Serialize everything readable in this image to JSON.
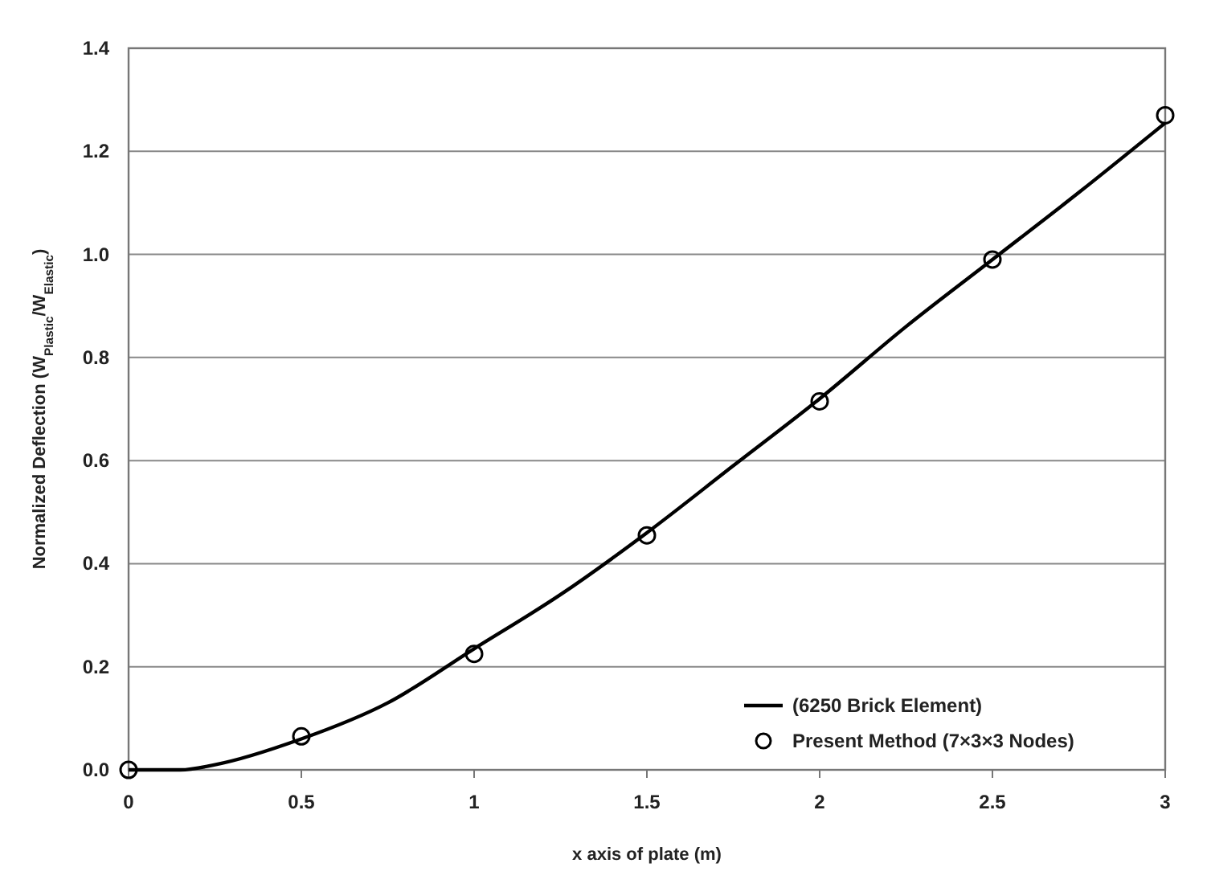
{
  "chart_data": {
    "type": "line",
    "xlabel": "x axis  of plate (m)",
    "ylabel": "Normalized Deflection (W$_{Plastic}$/W$_{Elastic}$)",
    "xlim": [
      0,
      3
    ],
    "xticks": [
      0,
      0.5,
      1,
      1.5,
      2,
      2.5,
      3
    ],
    "ylim": [
      0,
      1.4
    ],
    "yticks": [
      {
        "value": 0,
        "label": "0.0"
      },
      {
        "value": 0.2,
        "label": "0.2"
      },
      {
        "value": 0.4,
        "label": "0.4"
      },
      {
        "value": 0.6,
        "label": "0.6"
      },
      {
        "value": 0.8,
        "label": "0.8"
      },
      {
        "value": 1,
        "label": "1.0"
      },
      {
        "value": 1.2,
        "label": "1.2"
      },
      {
        "value": 1.4,
        "label": "1.4"
      }
    ],
    "grid": "y",
    "legend": "bottom right",
    "series": [
      {
        "name": "(6250 Brick Element)",
        "type": "line",
        "color": "#000000",
        "marker": "none",
        "line_style": "solid",
        "x": [
          0,
          0.15,
          0.25,
          0.5,
          0.75,
          1,
          1.25,
          1.5,
          1.75,
          2,
          2.25,
          2.5,
          2.75,
          3
        ],
        "values": [
          0,
          0,
          0.01,
          0.06,
          0.13,
          0.235,
          0.34,
          0.46,
          0.59,
          0.72,
          0.86,
          0.99,
          1.12,
          1.255
        ]
      },
      {
        "name": "Present Method (7×3×3 Nodes)",
        "type": "scatter",
        "color": "#000000",
        "marker": "circle",
        "x": [
          0,
          0.5,
          1,
          1.5,
          2,
          2.5,
          3
        ],
        "values": [
          0,
          0.065,
          0.225,
          0.455,
          0.715,
          0.99,
          1.27
        ]
      }
    ]
  }
}
